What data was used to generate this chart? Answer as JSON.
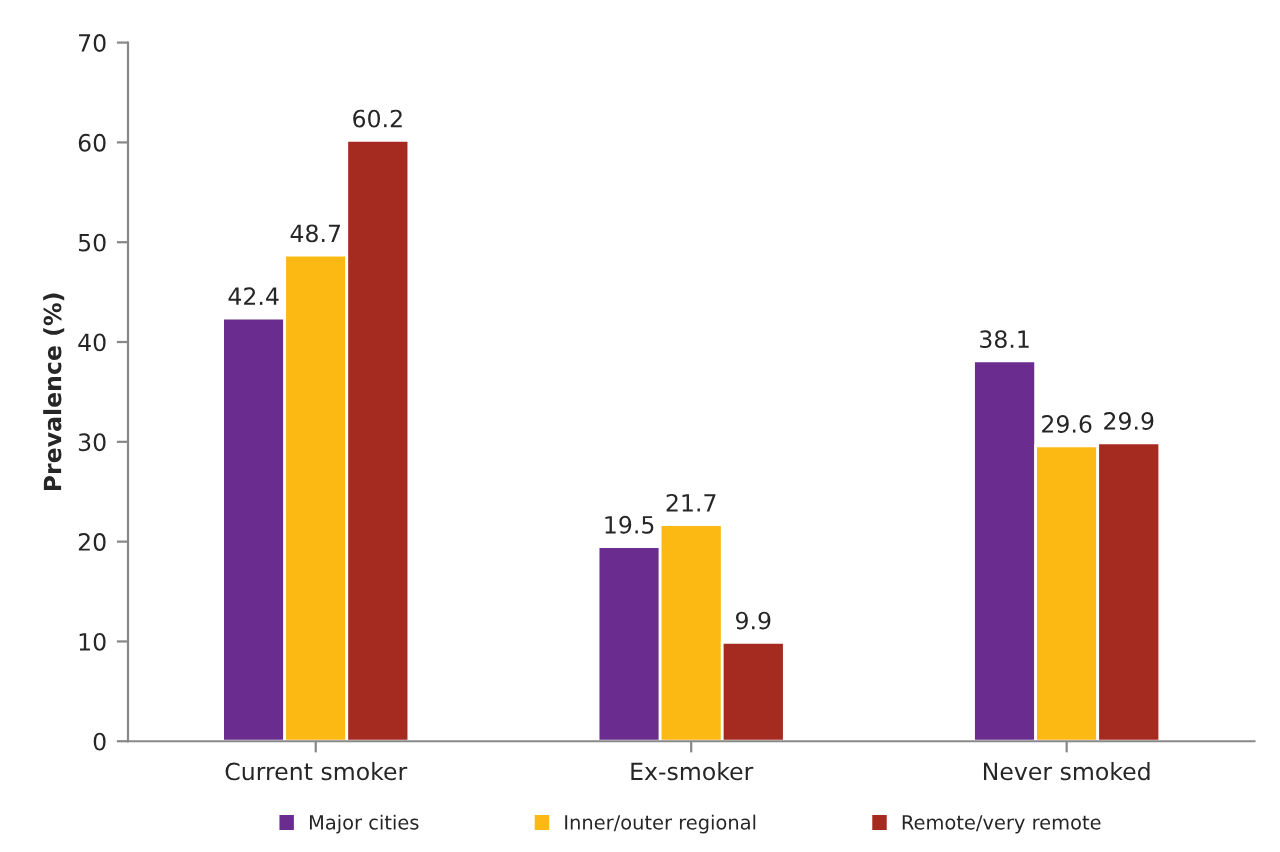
{
  "chart_data": {
    "type": "bar",
    "ylabel": "Prevalence (%)",
    "categories": [
      "Current smoker",
      "Ex-smoker",
      "Never smoked"
    ],
    "series": [
      {
        "name": "Major cities",
        "color": "#6a2c8e",
        "values": [
          42.4,
          19.5,
          38.1
        ]
      },
      {
        "name": "Inner/outer regional",
        "color": "#fdb913",
        "values": [
          48.7,
          21.7,
          29.6
        ]
      },
      {
        "name": "Remote/very remote",
        "color": "#a52a1f",
        "values": [
          60.2,
          9.9,
          29.9
        ]
      }
    ],
    "ylim": [
      0,
      70
    ],
    "yticks": [
      0,
      10,
      20,
      30,
      40,
      50,
      60,
      70
    ],
    "data_labels": true,
    "legend": "bottom",
    "grid": false
  }
}
